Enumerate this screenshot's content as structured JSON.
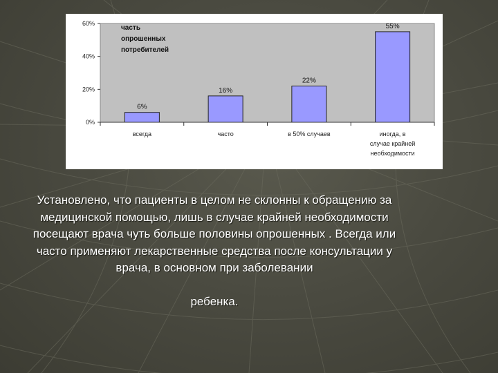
{
  "slide": {
    "paragraph": "Установлено, что пациенты в целом не склонны к обращению за медицинской помощью, лишь в случае крайней необходимости посещают врача чуть больше половины опрошенных . Всегда или часто применяют лекарственные средства после консультации у врача, в основном при заболевании",
    "closing_word": "ребенка."
  },
  "colors": {
    "background": "#4a4a40",
    "chart_panel": "#ffffff",
    "plot_area": "#c0c0c0",
    "bar_fill": "#9999ff",
    "bar_stroke": "#222222",
    "text": "#ffffff"
  },
  "chart_data": {
    "type": "bar",
    "title": "",
    "series_label": [
      "часть",
      "опрошенных",
      "потребителей"
    ],
    "categories": [
      [
        "всегда"
      ],
      [
        "часто"
      ],
      [
        "в 50% случаев"
      ],
      [
        "иногда, в",
        "случае крайней",
        "необходимости"
      ]
    ],
    "values": [
      6,
      16,
      22,
      55
    ],
    "data_labels": [
      "6%",
      "16%",
      "22%",
      "55%"
    ],
    "ylim": [
      0,
      60
    ],
    "yticks": [
      "0%",
      "20%",
      "40%",
      "60%"
    ],
    "ytick_values": [
      0,
      20,
      40,
      60
    ],
    "grid": false,
    "legend": "none"
  }
}
